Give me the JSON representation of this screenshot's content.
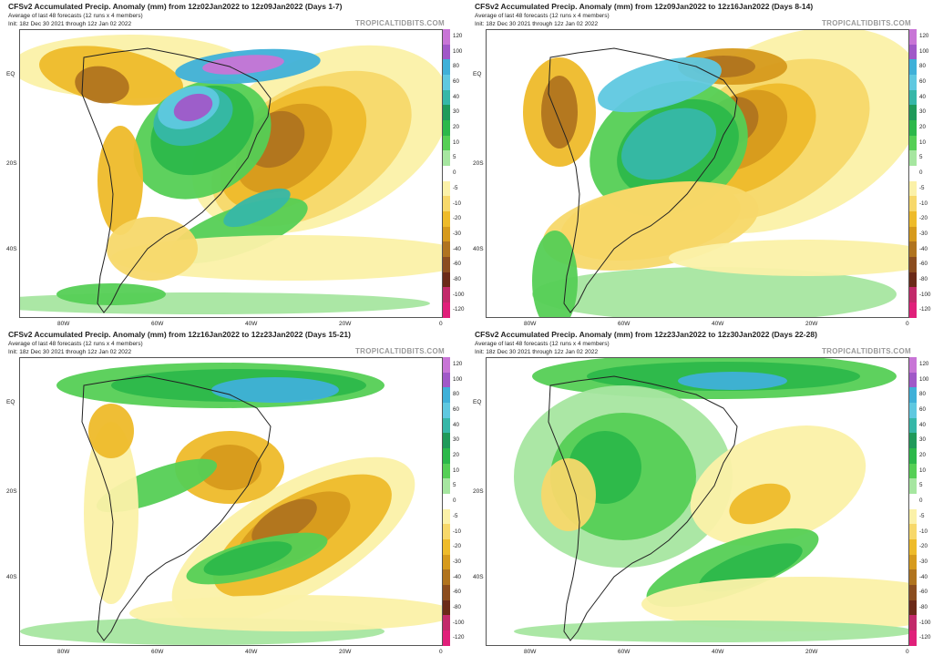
{
  "brand": "TROPICALTIDBITS.COM",
  "subtitle": "Average of last 48 forecasts (12 runs x 4 members)",
  "init": "Init: 18z Dec 30 2021 through 12z Jan 02 2022",
  "lat_labels": [
    "EQ",
    "20S",
    "40S"
  ],
  "lon_labels": [
    "80W",
    "60W",
    "40W",
    "20W",
    "0"
  ],
  "colorbar": {
    "labels": [
      "120",
      "100",
      "80",
      "60",
      "40",
      "30",
      "20",
      "10",
      "5",
      "0",
      "-5",
      "-10",
      "-20",
      "-30",
      "-40",
      "-60",
      "-80",
      "-100",
      "-120"
    ],
    "colors": [
      "#c875d6",
      "#a058c8",
      "#3fb0d8",
      "#5fc8e0",
      "#36b7a8",
      "#1f9a5a",
      "#2cb84a",
      "#55cf55",
      "#a6e6a0",
      "#ffffff",
      "#fbf1a8",
      "#f7d86a",
      "#eebb2a",
      "#d69a1c",
      "#b0741f",
      "#8b4d1f",
      "#6b2a18",
      "#c22a6a",
      "#e0207a"
    ]
  },
  "panels": [
    {
      "title": "CFSv2 Accumulated Precip. Anomaly (mm) from 12z02Jan2022 to 12z09Jan2022 (Days 1-7)"
    },
    {
      "title": "CFSv2 Accumulated Precip. Anomaly (mm) from 12z09Jan2022 to 12z16Jan2022 (Days 8-14)"
    },
    {
      "title": "CFSv2 Accumulated Precip. Anomaly (mm) from 12z16Jan2022 to 12z23Jan2022 (Days 15-21)"
    },
    {
      "title": "CFSv2 Accumulated Precip. Anomaly (mm) from 12z23Jan2022 to 12z30Jan2022 (Days 22-28)"
    }
  ]
}
